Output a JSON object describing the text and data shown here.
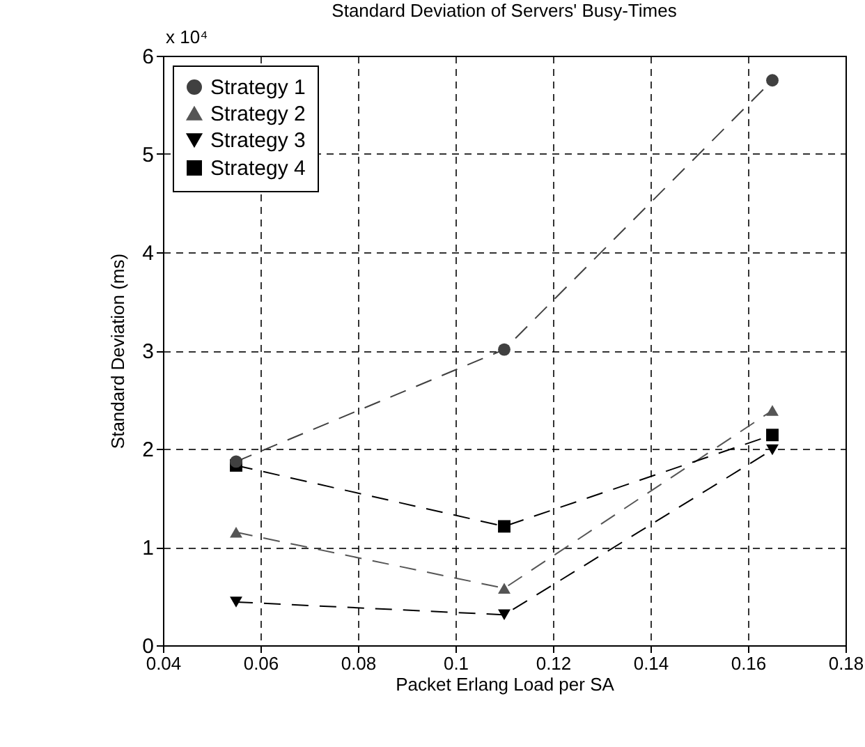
{
  "chart_data": {
    "type": "line",
    "title": "Standard Deviation of Servers' Busy-Times",
    "xlabel": "Packet Erlang Load per SA",
    "ylabel": "Standard Deviation (ms)",
    "annotations": [
      "x 10⁴"
    ],
    "x": [
      0.055,
      0.11,
      0.165
    ],
    "series": [
      {
        "name": "Strategy 1",
        "color": "#404040",
        "marker": "circle",
        "values": [
          1.87,
          3.01,
          5.75
        ]
      },
      {
        "name": "Strategy 2",
        "color": "#555555",
        "marker": "triangle",
        "values": [
          1.15,
          0.58,
          2.39
        ]
      },
      {
        "name": "Strategy 3",
        "color": "#000000",
        "marker": "triangle-down",
        "values": [
          0.44,
          0.31,
          1.99
        ]
      },
      {
        "name": "Strategy 4",
        "color": "#000000",
        "marker": "square",
        "values": [
          1.83,
          1.21,
          2.14
        ]
      }
    ],
    "xlim": [
      0.04,
      0.18
    ],
    "xticks": [
      0.04,
      0.06,
      0.08,
      0.1,
      0.12,
      0.14,
      0.16,
      0.18
    ],
    "ylim": [
      0,
      6
    ],
    "yticks": [
      0,
      1,
      2,
      3,
      4,
      5,
      6
    ],
    "grid": true,
    "legend": "top left",
    "line_style": "dashed"
  }
}
